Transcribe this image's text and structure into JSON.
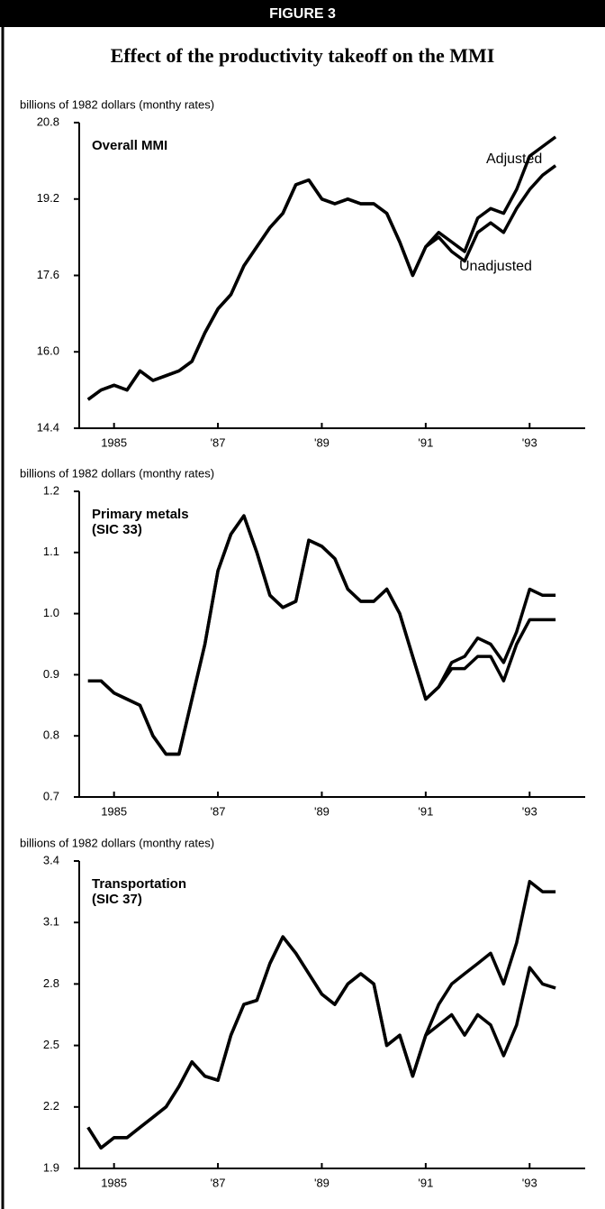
{
  "figure": {
    "label": "FIGURE 3",
    "title": "Effect of the productivity takeoff on the MMI"
  },
  "chart_data": [
    {
      "type": "line",
      "title": [
        "Overall MMI"
      ],
      "ylabel": "billions of 1982 dollars (monthy rates)",
      "x": [
        1984.5,
        1984.75,
        1985,
        1985.25,
        1985.5,
        1985.75,
        1986,
        1986.25,
        1986.5,
        1986.75,
        1987,
        1987.25,
        1987.5,
        1987.75,
        1988,
        1988.25,
        1988.5,
        1988.75,
        1989,
        1989.25,
        1989.5,
        1989.75,
        1990,
        1990.25,
        1990.5,
        1990.75,
        1991,
        1991.25,
        1991.5,
        1991.75,
        1992,
        1992.25,
        1992.5,
        1992.75,
        1993,
        1993.25,
        1993.5
      ],
      "series": [
        {
          "name": "Adjusted",
          "color": "#000000",
          "values": [
            15.0,
            15.2,
            15.3,
            15.2,
            15.6,
            15.4,
            15.5,
            15.6,
            15.8,
            16.4,
            16.9,
            17.2,
            17.8,
            18.2,
            18.6,
            18.9,
            19.5,
            19.6,
            19.2,
            19.1,
            19.2,
            19.1,
            19.1,
            18.9,
            18.3,
            17.6,
            18.2,
            18.5,
            18.3,
            18.1,
            18.8,
            19.0,
            18.9,
            19.4,
            20.1,
            20.3,
            20.5
          ]
        },
        {
          "name": "Unadjusted",
          "color": "#000000",
          "values": [
            15.0,
            15.2,
            15.3,
            15.2,
            15.6,
            15.4,
            15.5,
            15.6,
            15.8,
            16.4,
            16.9,
            17.2,
            17.8,
            18.2,
            18.6,
            18.9,
            19.5,
            19.6,
            19.2,
            19.1,
            19.2,
            19.1,
            19.1,
            18.9,
            18.3,
            17.6,
            18.2,
            18.4,
            18.1,
            17.9,
            18.5,
            18.7,
            18.5,
            19.0,
            19.4,
            19.7,
            19.9
          ]
        }
      ],
      "xlim": [
        1984.33,
        1994.07
      ],
      "xticks": [
        1985,
        {
          "value": 1987,
          "label": "'87"
        },
        {
          "value": 1989,
          "label": "'89"
        },
        {
          "value": 1991,
          "label": "'91"
        },
        {
          "value": 1993,
          "label": "'93"
        }
      ],
      "ylim": [
        14.4,
        20.8
      ],
      "yticks": [
        14.4,
        {
          "value": 16,
          "label": "16.0"
        },
        17.6,
        19.2,
        20.8
      ]
    },
    {
      "type": "line",
      "title": [
        "Primary metals",
        "(SIC 33)"
      ],
      "ylabel": "billions of 1982 dollars (monthy rates)",
      "x": [
        1984.5,
        1984.75,
        1985,
        1985.25,
        1985.5,
        1985.75,
        1986,
        1986.25,
        1986.5,
        1986.75,
        1987,
        1987.25,
        1987.5,
        1987.75,
        1988,
        1988.25,
        1988.5,
        1988.75,
        1989,
        1989.25,
        1989.5,
        1989.75,
        1990,
        1990.25,
        1990.5,
        1990.75,
        1991,
        1991.25,
        1991.5,
        1991.75,
        1992,
        1992.25,
        1992.5,
        1992.75,
        1993,
        1993.25,
        1993.5
      ],
      "series": [
        {
          "color": "#000000",
          "values": [
            0.89,
            0.89,
            0.87,
            0.86,
            0.85,
            0.8,
            0.77,
            0.77,
            0.86,
            0.95,
            1.07,
            1.13,
            1.16,
            1.1,
            1.03,
            1.01,
            1.02,
            1.12,
            1.11,
            1.09,
            1.04,
            1.02,
            1.02,
            1.04,
            1.0,
            0.93,
            0.86,
            0.88,
            0.92,
            0.93,
            0.96,
            0.95,
            0.92,
            0.97,
            1.04,
            1.03,
            1.03
          ]
        },
        {
          "color": "#000000",
          "values": [
            0.89,
            0.89,
            0.87,
            0.86,
            0.85,
            0.8,
            0.77,
            0.77,
            0.86,
            0.95,
            1.07,
            1.13,
            1.16,
            1.1,
            1.03,
            1.01,
            1.02,
            1.12,
            1.11,
            1.09,
            1.04,
            1.02,
            1.02,
            1.04,
            1.0,
            0.93,
            0.86,
            0.88,
            0.91,
            0.91,
            0.93,
            0.93,
            0.89,
            0.95,
            0.99,
            0.99,
            0.99
          ]
        }
      ],
      "xlim": [
        1984.33,
        1994.07
      ],
      "xticks": [
        1985,
        {
          "value": 1987,
          "label": "'87"
        },
        {
          "value": 1989,
          "label": "'89"
        },
        {
          "value": 1991,
          "label": "'91"
        },
        {
          "value": 1993,
          "label": "'93"
        }
      ],
      "ylim": [
        0.7,
        1.2
      ],
      "yticks": [
        0.7,
        0.8,
        0.9,
        {
          "value": 1,
          "label": "1.0"
        },
        1.1,
        1.2
      ]
    },
    {
      "type": "line",
      "title": [
        "Transportation",
        "(SIC 37)"
      ],
      "ylabel": "billions of 1982 dollars (monthy rates)",
      "x": [
        1984.5,
        1984.75,
        1985,
        1985.25,
        1985.5,
        1985.75,
        1986,
        1986.25,
        1986.5,
        1986.75,
        1987,
        1987.25,
        1987.5,
        1987.75,
        1988,
        1988.25,
        1988.5,
        1988.75,
        1989,
        1989.25,
        1989.5,
        1989.75,
        1990,
        1990.25,
        1990.5,
        1990.75,
        1991,
        1991.25,
        1991.5,
        1991.75,
        1992,
        1992.25,
        1992.5,
        1992.75,
        1993,
        1993.25,
        1993.5
      ],
      "series": [
        {
          "color": "#000000",
          "values": [
            2.1,
            2.0,
            2.05,
            2.05,
            2.1,
            2.15,
            2.2,
            2.3,
            2.42,
            2.35,
            2.33,
            2.55,
            2.7,
            2.72,
            2.9,
            3.03,
            2.95,
            2.85,
            2.75,
            2.7,
            2.8,
            2.85,
            2.8,
            2.5,
            2.55,
            2.35,
            2.55,
            2.7,
            2.8,
            2.85,
            2.9,
            2.95,
            2.8,
            3.0,
            3.3,
            3.25,
            3.25
          ]
        },
        {
          "color": "#000000",
          "values": [
            2.1,
            2.0,
            2.05,
            2.05,
            2.1,
            2.15,
            2.2,
            2.3,
            2.42,
            2.35,
            2.33,
            2.55,
            2.7,
            2.72,
            2.9,
            3.03,
            2.95,
            2.85,
            2.75,
            2.7,
            2.8,
            2.85,
            2.8,
            2.5,
            2.55,
            2.35,
            2.55,
            2.6,
            2.65,
            2.55,
            2.65,
            2.6,
            2.45,
            2.6,
            2.88,
            2.8,
            2.78
          ]
        }
      ],
      "xlim": [
        1984.33,
        1994.07
      ],
      "xticks": [
        1985,
        {
          "value": 1987,
          "label": "'87"
        },
        {
          "value": 1989,
          "label": "'89"
        },
        {
          "value": 1991,
          "label": "'91"
        },
        {
          "value": 1993,
          "label": "'93"
        }
      ],
      "ylim": [
        1.9,
        3.4
      ],
      "yticks": [
        1.9,
        2.2,
        2.5,
        2.8,
        3.1,
        3.4
      ]
    }
  ]
}
